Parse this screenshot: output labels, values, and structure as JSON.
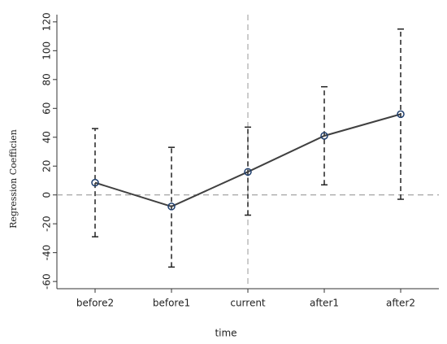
{
  "chart_data": {
    "type": "coefplot",
    "categories": [
      "before2",
      "before1",
      "current",
      "after1",
      "after2"
    ],
    "values": [
      8.5,
      -8,
      16,
      41,
      56
    ],
    "lower": [
      -29,
      -50,
      -14,
      7,
      -3
    ],
    "upper": [
      46,
      33,
      47,
      75,
      115
    ],
    "color": "#404040",
    "marker_color": "#1f3f6e",
    "ylim": [
      -65,
      125
    ],
    "yticks": [
      -60,
      -40,
      -20,
      0,
      20,
      40,
      60,
      80,
      100,
      120
    ],
    "ylabel": "Regression Coefficien",
    "xlabel": "time",
    "hline": 0,
    "vline": "current"
  }
}
